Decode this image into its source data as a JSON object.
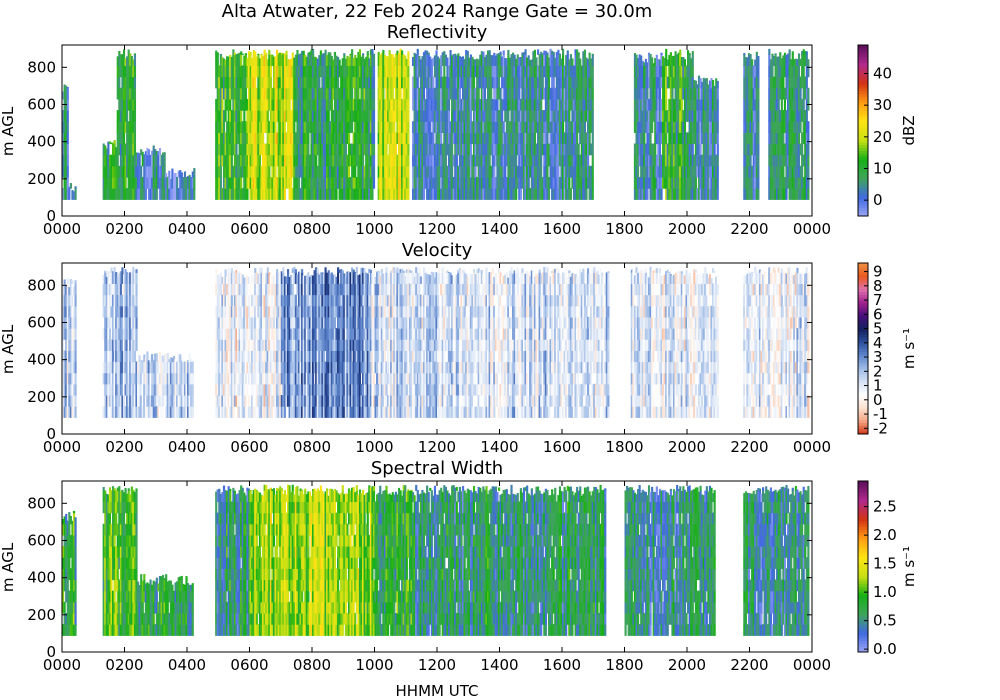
{
  "title": "Alta Atwater, 22 Feb 2024 Range Gate = 30.0m",
  "xlabel": "HHMM UTC",
  "chart_data": [
    {
      "type": "heatmap",
      "title": "Reflectivity",
      "ylabel": "m AGL",
      "colorbar_label": "dBZ",
      "x_ticks": [
        "0000",
        "0200",
        "0400",
        "0600",
        "0800",
        "1000",
        "1200",
        "1400",
        "1600",
        "1800",
        "2000",
        "2200",
        "0000"
      ],
      "xlim": [
        0,
        24
      ],
      "y_ticks": [
        0,
        200,
        400,
        600,
        800
      ],
      "ylim": [
        0,
        920
      ],
      "data_ylim": [
        90,
        900
      ],
      "colorbar_ticks": [
        "0",
        "10",
        "20",
        "30",
        "40"
      ],
      "clim": [
        -5,
        49
      ],
      "colormap": [
        "#9aa6f5",
        "#4169e1",
        "#3fa55a",
        "#16b016",
        "#c8e014",
        "#ffe414",
        "#ff9a14",
        "#d23314",
        "#b02a8e",
        "#5a0f5a"
      ],
      "segments": [
        {
          "start_hour": 0.0,
          "end_hour": 0.2,
          "top_m": 720,
          "mean": 4
        },
        {
          "start_hour": 0.2,
          "end_hour": 0.45,
          "top_m": 180,
          "mean": 2
        },
        {
          "start_hour": 1.3,
          "end_hour": 1.75,
          "top_m": 420,
          "mean": 9
        },
        {
          "start_hour": 1.75,
          "end_hour": 2.35,
          "top_m": 900,
          "mean": 10
        },
        {
          "start_hour": 2.35,
          "end_hour": 3.3,
          "top_m": 380,
          "mean": 3
        },
        {
          "start_hour": 3.3,
          "end_hour": 4.25,
          "top_m": 260,
          "mean": 1
        },
        {
          "start_hour": 4.9,
          "end_hour": 5.9,
          "top_m": 900,
          "mean": 11
        },
        {
          "start_hour": 5.9,
          "end_hour": 7.4,
          "top_m": 900,
          "mean": 20
        },
        {
          "start_hour": 7.4,
          "end_hour": 10.0,
          "top_m": 900,
          "mean": 9
        },
        {
          "start_hour": 10.1,
          "end_hour": 11.1,
          "top_m": 900,
          "mean": 19
        },
        {
          "start_hour": 11.2,
          "end_hour": 12.6,
          "top_m": 900,
          "mean": 3
        },
        {
          "start_hour": 12.6,
          "end_hour": 17.0,
          "top_m": 900,
          "mean": 4
        },
        {
          "start_hour": 18.3,
          "end_hour": 19.2,
          "top_m": 880,
          "mean": 4
        },
        {
          "start_hour": 19.2,
          "end_hour": 20.2,
          "top_m": 900,
          "mean": 10
        },
        {
          "start_hour": 20.2,
          "end_hour": 21.0,
          "top_m": 760,
          "mean": 3
        },
        {
          "start_hour": 21.8,
          "end_hour": 22.3,
          "top_m": 900,
          "mean": 4
        },
        {
          "start_hour": 22.6,
          "end_hour": 23.9,
          "top_m": 900,
          "mean": 6
        }
      ]
    },
    {
      "type": "heatmap",
      "title": "Velocity",
      "ylabel": "m AGL",
      "colorbar_label": "m s⁻¹",
      "x_ticks": [
        "0000",
        "0200",
        "0400",
        "0600",
        "0800",
        "1000",
        "1200",
        "1400",
        "1600",
        "1800",
        "2000",
        "2200",
        "0000"
      ],
      "xlim": [
        0,
        24
      ],
      "y_ticks": [
        0,
        200,
        400,
        600,
        800
      ],
      "ylim": [
        0,
        920
      ],
      "data_ylim": [
        90,
        900
      ],
      "colorbar_ticks": [
        "-2",
        "-1",
        "0",
        "1",
        "2",
        "3",
        "4",
        "5",
        "6",
        "7",
        "8",
        "9"
      ],
      "clim": [
        -2.4,
        9.6
      ],
      "colormap": [
        "#d23314",
        "#f4a482",
        "#fbe0d0",
        "#ffffff",
        "#d6e2f4",
        "#9fbbe6",
        "#5f86cc",
        "#2e4f9c",
        "#14205e",
        "#45107a",
        "#a0208c",
        "#e070b0",
        "#e85a20",
        "#f09040"
      ],
      "segments": [
        {
          "start_hour": 0.0,
          "end_hour": 0.45,
          "top_m": 840,
          "mean": 1.6
        },
        {
          "start_hour": 1.3,
          "end_hour": 2.4,
          "top_m": 900,
          "mean": 1.9
        },
        {
          "start_hour": 2.4,
          "end_hour": 4.2,
          "top_m": 450,
          "mean": 1.4
        },
        {
          "start_hour": 4.9,
          "end_hour": 7.0,
          "top_m": 900,
          "mean": 0.7
        },
        {
          "start_hour": 7.0,
          "end_hour": 9.8,
          "top_m": 900,
          "mean": 2.6
        },
        {
          "start_hour": 9.8,
          "end_hour": 11.2,
          "top_m": 900,
          "mean": 1.2
        },
        {
          "start_hour": 11.2,
          "end_hour": 17.5,
          "top_m": 900,
          "mean": 1.3
        },
        {
          "start_hour": 18.2,
          "end_hour": 21.0,
          "top_m": 900,
          "mean": 0.8
        },
        {
          "start_hour": 21.8,
          "end_hour": 23.9,
          "top_m": 900,
          "mean": 0.9
        }
      ]
    },
    {
      "type": "heatmap",
      "title": "Spectral Width",
      "ylabel": "m AGL",
      "colorbar_label": "m s⁻¹",
      "x_ticks": [
        "0000",
        "0200",
        "0400",
        "0600",
        "0800",
        "1000",
        "1200",
        "1400",
        "1600",
        "1800",
        "2000",
        "2200",
        "0000"
      ],
      "xlim": [
        0,
        24
      ],
      "y_ticks": [
        0,
        200,
        400,
        600,
        800
      ],
      "ylim": [
        0,
        920
      ],
      "data_ylim": [
        90,
        900
      ],
      "colorbar_ticks": [
        "0.0",
        "0.5",
        "1.0",
        "1.5",
        "2.0",
        "2.5"
      ],
      "clim": [
        -0.05,
        2.95
      ],
      "colormap": [
        "#9aa6f5",
        "#4169e1",
        "#3fa55a",
        "#16b016",
        "#c8e014",
        "#ffe414",
        "#ff9a14",
        "#d23314",
        "#b02a8e",
        "#5a0f5a"
      ],
      "segments": [
        {
          "start_hour": 0.0,
          "end_hour": 0.45,
          "top_m": 760,
          "mean": 0.8
        },
        {
          "start_hour": 1.3,
          "end_hour": 2.4,
          "top_m": 900,
          "mean": 1.0
        },
        {
          "start_hour": 2.4,
          "end_hour": 4.2,
          "top_m": 420,
          "mean": 0.7
        },
        {
          "start_hour": 4.9,
          "end_hour": 6.0,
          "top_m": 900,
          "mean": 0.6
        },
        {
          "start_hour": 6.0,
          "end_hour": 10.0,
          "top_m": 900,
          "mean": 1.2
        },
        {
          "start_hour": 10.0,
          "end_hour": 11.2,
          "top_m": 900,
          "mean": 0.8
        },
        {
          "start_hour": 11.2,
          "end_hour": 17.4,
          "top_m": 900,
          "mean": 0.6
        },
        {
          "start_hour": 18.0,
          "end_hour": 20.9,
          "top_m": 900,
          "mean": 0.5
        },
        {
          "start_hour": 21.8,
          "end_hour": 23.9,
          "top_m": 900,
          "mean": 0.5
        }
      ]
    }
  ]
}
